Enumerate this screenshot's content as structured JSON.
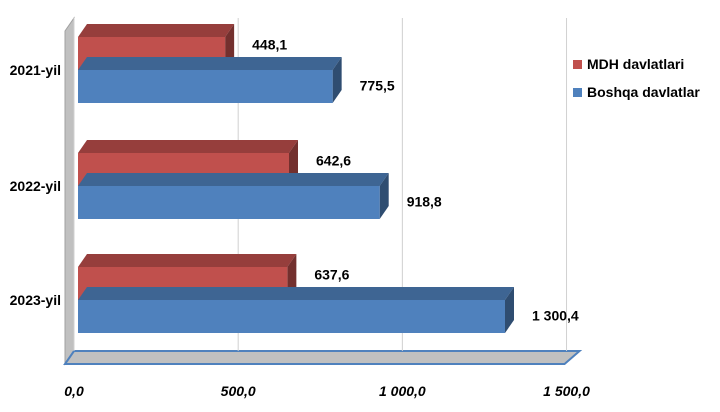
{
  "chart_data": {
    "type": "bar",
    "orientation": "horizontal",
    "style": "3d",
    "categories": [
      "2021-yil",
      "2022-yil",
      "2023-yil"
    ],
    "series": [
      {
        "name": "MDH davlatlari",
        "color": "#c0504d",
        "values": [
          448.1,
          642.6,
          637.6
        ],
        "value_labels": [
          "448,1",
          "642,6",
          "637,6"
        ]
      },
      {
        "name": "Boshqa davlatlar",
        "color": "#4f81bd",
        "values": [
          775.5,
          918.8,
          1300.4
        ],
        "value_labels": [
          "775,5",
          "918,8",
          "1 300,4"
        ]
      }
    ],
    "x_ticks": [
      "0,0",
      "500,0",
      "1 000,0",
      "1 500,0"
    ],
    "xlim": [
      0,
      1500
    ],
    "grid": true,
    "legend_position": "right",
    "title": "",
    "xlabel": "",
    "ylabel": ""
  },
  "colors": {
    "wall": "#c0c0c0",
    "floor_edge": "#4f81bd",
    "grid": "#d0d0d0"
  }
}
